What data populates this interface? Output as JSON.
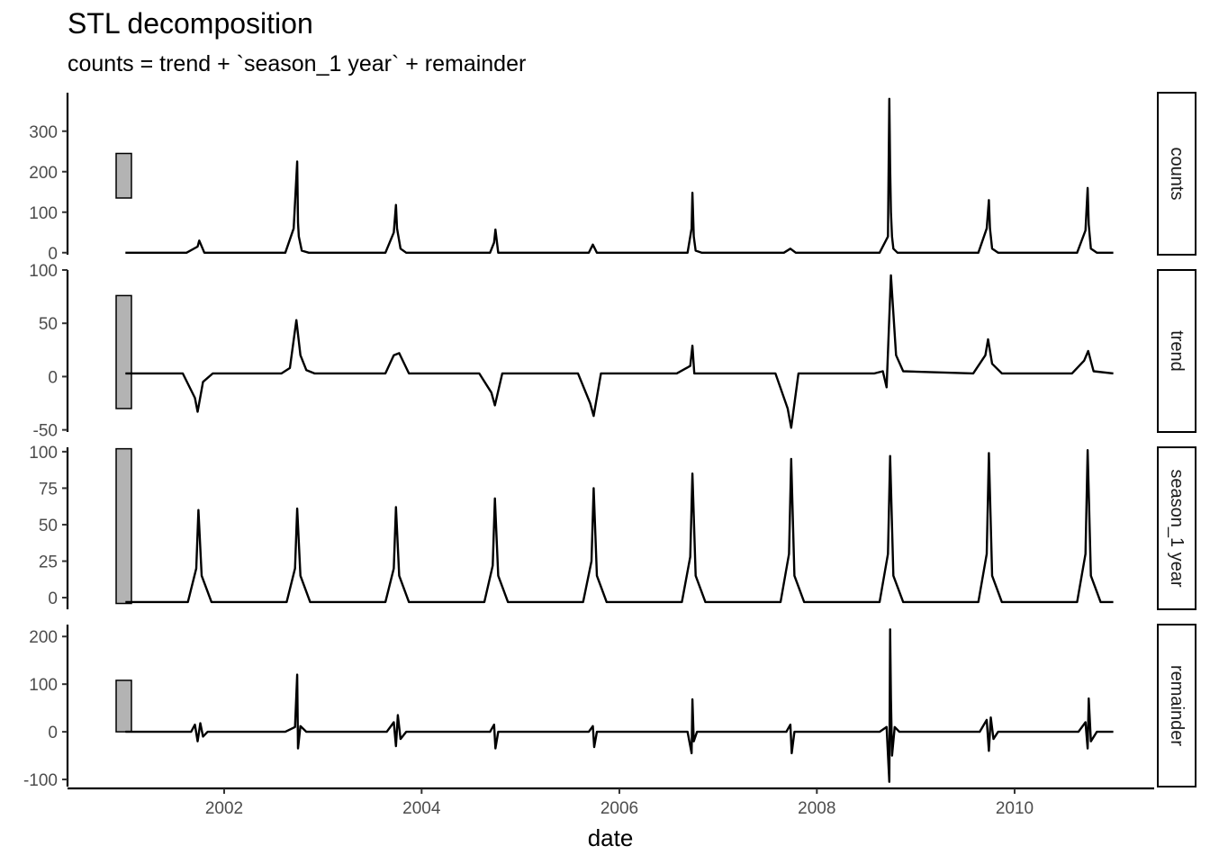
{
  "chart_data": {
    "type": "line",
    "title": "STL decomposition",
    "subtitle": "counts = trend + `season_1 year` + remainder",
    "xlabel": "date",
    "x_range": [
      "2000-06-01",
      "2011-06-01"
    ],
    "x_ticks": [
      "2002",
      "2004",
      "2006",
      "2008",
      "2010"
    ],
    "grid": false,
    "line_color": "#000000",
    "scale_bar_color": "#b3b3b3",
    "panels": [
      {
        "name": "counts",
        "strip_label": "counts",
        "ylim": [
          -5,
          395
        ],
        "y_ticks": [
          0,
          100,
          200,
          300
        ],
        "scale_bar": [
          135,
          245
        ],
        "series": {
          "x": [
            "2001-01-01",
            "2001-08-15",
            "2001-09-25",
            "2001-10-01",
            "2001-10-20",
            "2002-08-15",
            "2002-09-15",
            "2002-09-28",
            "2002-10-01",
            "2002-10-04",
            "2002-10-15",
            "2002-11-10",
            "2003-08-20",
            "2003-09-20",
            "2003-09-28",
            "2003-10-02",
            "2003-10-15",
            "2003-11-05",
            "2004-09-10",
            "2004-09-25",
            "2004-09-30",
            "2004-10-10",
            "2005-09-10",
            "2005-09-25",
            "2005-10-10",
            "2006-09-10",
            "2006-09-25",
            "2006-09-28",
            "2006-10-03",
            "2006-10-10",
            "2006-11-01",
            "2007-09-01",
            "2007-09-25",
            "2007-10-15",
            "2008-08-20",
            "2008-09-20",
            "2008-09-25",
            "2008-09-28",
            "2008-10-01",
            "2008-10-05",
            "2008-10-10",
            "2008-10-25",
            "2009-08-20",
            "2009-09-20",
            "2009-09-28",
            "2009-10-02",
            "2009-10-10",
            "2009-11-01",
            "2010-08-20",
            "2010-09-20",
            "2010-09-28",
            "2010-10-02",
            "2010-10-10",
            "2010-11-01",
            "2011-01-01"
          ],
          "y": [
            0,
            0,
            15,
            30,
            0,
            0,
            60,
            225,
            75,
            40,
            5,
            0,
            0,
            50,
            118,
            60,
            10,
            0,
            0,
            25,
            57,
            0,
            0,
            20,
            0,
            0,
            60,
            148,
            40,
            5,
            0,
            0,
            10,
            0,
            0,
            40,
            380,
            210,
            100,
            40,
            10,
            0,
            0,
            60,
            130,
            60,
            10,
            0,
            0,
            55,
            160,
            70,
            10,
            0,
            0
          ]
        }
      },
      {
        "name": "trend",
        "strip_label": "trend",
        "ylim": [
          -52,
          100
        ],
        "y_ticks": [
          -50,
          0,
          50,
          100
        ],
        "scale_bar": [
          -30,
          76
        ],
        "series": {
          "x": [
            "2001-01-01",
            "2001-08-01",
            "2001-09-15",
            "2001-09-25",
            "2001-10-15",
            "2001-11-20",
            "2002-08-01",
            "2002-09-01",
            "2002-09-25",
            "2002-10-10",
            "2002-11-01",
            "2002-12-01",
            "2003-08-20",
            "2003-09-20",
            "2003-10-10",
            "2003-11-15",
            "2004-08-01",
            "2004-09-15",
            "2004-09-28",
            "2004-10-25",
            "2005-08-01",
            "2005-09-15",
            "2005-09-28",
            "2005-10-25",
            "2006-08-01",
            "2006-09-20",
            "2006-09-28",
            "2006-10-05",
            "2006-10-20",
            "2007-08-01",
            "2007-09-15",
            "2007-09-28",
            "2007-10-25",
            "2008-08-01",
            "2008-09-01",
            "2008-09-15",
            "2008-10-01",
            "2008-10-20",
            "2008-11-15",
            "2009-08-01",
            "2009-09-15",
            "2009-09-25",
            "2009-10-10",
            "2009-11-15",
            "2010-08-01",
            "2010-09-15",
            "2010-09-30",
            "2010-10-20",
            "2011-01-01"
          ],
          "y": [
            3,
            3,
            -20,
            -33,
            -5,
            3,
            3,
            8,
            53,
            20,
            6,
            3,
            3,
            20,
            22,
            3,
            3,
            -15,
            -27,
            3,
            3,
            -25,
            -37,
            3,
            3,
            10,
            29,
            3,
            3,
            3,
            -30,
            -48,
            3,
            3,
            5,
            -10,
            95,
            20,
            5,
            3,
            20,
            35,
            12,
            3,
            3,
            15,
            24,
            5,
            3
          ]
        }
      },
      {
        "name": "season_1 year",
        "strip_label": "season_1 year",
        "ylim": [
          -8,
          103
        ],
        "y_ticks": [
          0,
          25,
          50,
          75,
          100
        ],
        "scale_bar": [
          -4,
          102
        ],
        "series": {
          "x": [
            "2001-01-01",
            "2001-08-20",
            "2001-09-20",
            "2001-09-28",
            "2001-10-10",
            "2001-11-15",
            "2002-08-20",
            "2002-09-20",
            "2002-09-28",
            "2002-10-10",
            "2002-11-15",
            "2003-08-20",
            "2003-09-20",
            "2003-09-28",
            "2003-10-10",
            "2003-11-15",
            "2004-08-20",
            "2004-09-20",
            "2004-09-28",
            "2004-10-10",
            "2004-11-15",
            "2005-08-20",
            "2005-09-20",
            "2005-09-28",
            "2005-10-10",
            "2005-11-15",
            "2006-08-20",
            "2006-09-20",
            "2006-09-28",
            "2006-10-10",
            "2006-11-15",
            "2007-08-20",
            "2007-09-20",
            "2007-09-28",
            "2007-10-10",
            "2007-11-15",
            "2008-08-20",
            "2008-09-20",
            "2008-09-28",
            "2008-10-10",
            "2008-11-15",
            "2009-08-20",
            "2009-09-20",
            "2009-09-28",
            "2009-10-10",
            "2009-11-15",
            "2010-08-20",
            "2010-09-20",
            "2010-09-28",
            "2010-10-10",
            "2010-11-15",
            "2011-01-01"
          ],
          "y": [
            -3,
            -3,
            20,
            60,
            15,
            -3,
            -3,
            20,
            61,
            15,
            -3,
            -3,
            20,
            62,
            15,
            -3,
            -3,
            22,
            68,
            15,
            -3,
            -3,
            25,
            75,
            15,
            -3,
            -3,
            28,
            85,
            15,
            -3,
            -3,
            30,
            95,
            15,
            -3,
            -3,
            30,
            97,
            15,
            -3,
            -3,
            30,
            99,
            15,
            -3,
            -3,
            30,
            101,
            15,
            -3,
            -3
          ]
        }
      },
      {
        "name": "remainder",
        "strip_label": "remainder",
        "ylim": [
          -115,
          225
        ],
        "y_ticks": [
          -100,
          0,
          100,
          200
        ],
        "scale_bar": [
          0,
          108
        ],
        "series": {
          "x": [
            "2001-01-01",
            "2001-09-01",
            "2001-09-15",
            "2001-09-25",
            "2001-10-05",
            "2001-10-15",
            "2001-11-01",
            "2002-08-15",
            "2002-09-20",
            "2002-09-28",
            "2002-10-01",
            "2002-10-10",
            "2002-11-01",
            "2003-08-25",
            "2003-09-20",
            "2003-09-28",
            "2003-10-05",
            "2003-10-15",
            "2003-11-05",
            "2004-09-10",
            "2004-09-25",
            "2004-09-30",
            "2004-10-10",
            "2005-09-10",
            "2005-09-25",
            "2005-09-30",
            "2005-10-10",
            "2006-09-10",
            "2006-09-25",
            "2006-09-28",
            "2006-10-03",
            "2006-10-15",
            "2007-09-10",
            "2007-09-25",
            "2007-09-30",
            "2007-10-10",
            "2008-08-20",
            "2008-09-15",
            "2008-09-25",
            "2008-09-28",
            "2008-10-01",
            "2008-10-05",
            "2008-10-15",
            "2008-11-01",
            "2009-08-25",
            "2009-09-20",
            "2009-09-28",
            "2009-10-05",
            "2009-10-15",
            "2009-11-01",
            "2010-08-25",
            "2010-09-20",
            "2010-09-28",
            "2010-10-02",
            "2010-10-10",
            "2010-11-01",
            "2011-01-01"
          ],
          "y": [
            0,
            0,
            15,
            -20,
            18,
            -10,
            0,
            0,
            10,
            120,
            -35,
            12,
            0,
            0,
            20,
            -30,
            35,
            -15,
            0,
            0,
            15,
            -35,
            0,
            0,
            12,
            -32,
            0,
            0,
            -45,
            68,
            -20,
            0,
            0,
            15,
            -45,
            0,
            0,
            10,
            -105,
            215,
            70,
            -50,
            10,
            0,
            0,
            25,
            -40,
            30,
            -15,
            0,
            0,
            20,
            -35,
            70,
            -20,
            0,
            0
          ]
        }
      }
    ]
  }
}
